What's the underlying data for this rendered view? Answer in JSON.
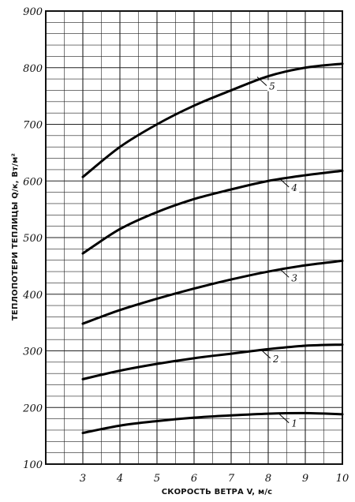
{
  "chart_data": {
    "type": "line",
    "title": "",
    "xlabel": "СКОРОСТЬ ВЕТРА  V, м/с",
    "ylabel": "ТЕПЛОПОТЕРИ ТЕПЛИЦЫ  Q/к, Вт/м²",
    "xlim": [
      2,
      10
    ],
    "ylim": [
      100,
      900
    ],
    "x_ticks": [
      "3",
      "4",
      "5",
      "6",
      "7",
      "8",
      "9",
      "10"
    ],
    "y_ticks": [
      "100",
      "200",
      "300",
      "400",
      "500",
      "600",
      "700",
      "800",
      "900"
    ],
    "grid": true,
    "series": [
      {
        "name": "1",
        "x": [
          3,
          4,
          5,
          6,
          7,
          8,
          9,
          10
        ],
        "values": [
          155,
          168,
          176,
          182,
          186,
          189,
          190,
          188
        ]
      },
      {
        "name": "2",
        "x": [
          3,
          4,
          5,
          6,
          7,
          8,
          9,
          10
        ],
        "values": [
          250,
          265,
          277,
          287,
          295,
          303,
          309,
          311
        ]
      },
      {
        "name": "3",
        "x": [
          3,
          4,
          5,
          6,
          7,
          8,
          9,
          10
        ],
        "values": [
          348,
          372,
          392,
          410,
          426,
          440,
          451,
          459
        ]
      },
      {
        "name": "4",
        "x": [
          3,
          4,
          5,
          6,
          7,
          8,
          9,
          10
        ],
        "values": [
          472,
          515,
          545,
          568,
          585,
          600,
          610,
          618
        ]
      },
      {
        "name": "5",
        "x": [
          3,
          4,
          5,
          6,
          7,
          8,
          9,
          10
        ],
        "values": [
          607,
          660,
          700,
          733,
          760,
          785,
          800,
          807
        ]
      }
    ]
  }
}
